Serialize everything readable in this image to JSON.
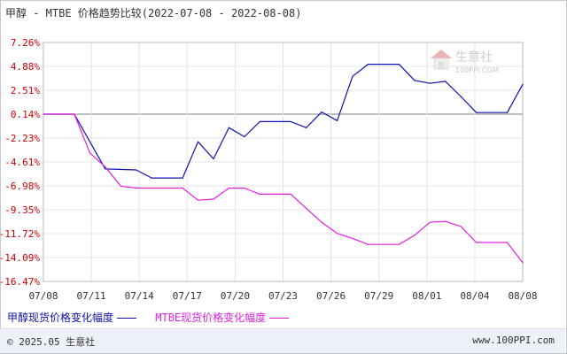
{
  "title": "甲醇 - MTBE 价格趋势比较(2022-07-08 - 2022-08-08)",
  "footer": {
    "copyright": "© 2025.05 生意社",
    "site": "www.100PPI.com"
  },
  "watermark": {
    "brand": "生意社",
    "url": "100PPI.COM"
  },
  "colors": {
    "series_methanol": "#1010b0",
    "series_mtbe": "#e020e0",
    "y_labels": "#cc0000",
    "zero_line": "#999999",
    "grid": "#e4e4e4"
  },
  "chart_data": {
    "type": "line",
    "y_ticks": [
      "7.26%",
      "4.88%",
      "2.51%",
      "0.14%",
      "-2.23%",
      "-4.61%",
      "-6.98%",
      "-9.35%",
      "-11.72%",
      "-14.09%",
      "-16.47%"
    ],
    "x_ticks": [
      "07/08",
      "07/11",
      "07/14",
      "07/17",
      "07/20",
      "07/23",
      "07/26",
      "07/29",
      "08/01",
      "08/04",
      "08/08"
    ],
    "ylim": [
      -16.47,
      7.26
    ],
    "x_domain": [
      0,
      31
    ],
    "grid": true,
    "legend_position": "bottom-left",
    "series": [
      {
        "name": "甲醇现货价格变化幅度",
        "color": "#1010b0",
        "points": [
          [
            0,
            0.14
          ],
          [
            2,
            0.14
          ],
          [
            4,
            -5.3
          ],
          [
            6,
            -5.4
          ],
          [
            7,
            -6.2
          ],
          [
            9,
            -6.2
          ],
          [
            10,
            -2.6
          ],
          [
            11,
            -4.3
          ],
          [
            12,
            -1.2
          ],
          [
            13,
            -2.1
          ],
          [
            14,
            -0.6
          ],
          [
            16,
            -0.6
          ],
          [
            17,
            -1.2
          ],
          [
            18,
            0.35
          ],
          [
            19,
            -0.5
          ],
          [
            20,
            3.9
          ],
          [
            21,
            5.1
          ],
          [
            23,
            5.1
          ],
          [
            24,
            3.5
          ],
          [
            25,
            3.2
          ],
          [
            26,
            3.4
          ],
          [
            27,
            1.9
          ],
          [
            28,
            0.3
          ],
          [
            30,
            0.3
          ],
          [
            31,
            3.1
          ]
        ]
      },
      {
        "name": "MTBE现货价格变化幅度",
        "color": "#e020e0",
        "points": [
          [
            0,
            0.14
          ],
          [
            2,
            0.14
          ],
          [
            3,
            -3.7
          ],
          [
            4,
            -5.1
          ],
          [
            5,
            -7.0
          ],
          [
            6,
            -7.2
          ],
          [
            9,
            -7.2
          ],
          [
            10,
            -8.4
          ],
          [
            11,
            -8.3
          ],
          [
            12,
            -7.2
          ],
          [
            13,
            -7.2
          ],
          [
            14,
            -7.8
          ],
          [
            16,
            -7.8
          ],
          [
            18,
            -10.6
          ],
          [
            19,
            -11.7
          ],
          [
            20,
            -12.2
          ],
          [
            21,
            -12.8
          ],
          [
            23,
            -12.8
          ],
          [
            24,
            -11.9
          ],
          [
            25,
            -10.6
          ],
          [
            26,
            -10.5
          ],
          [
            27,
            -11.0
          ],
          [
            28,
            -12.6
          ],
          [
            30,
            -12.6
          ],
          [
            31,
            -14.6
          ]
        ]
      }
    ]
  }
}
